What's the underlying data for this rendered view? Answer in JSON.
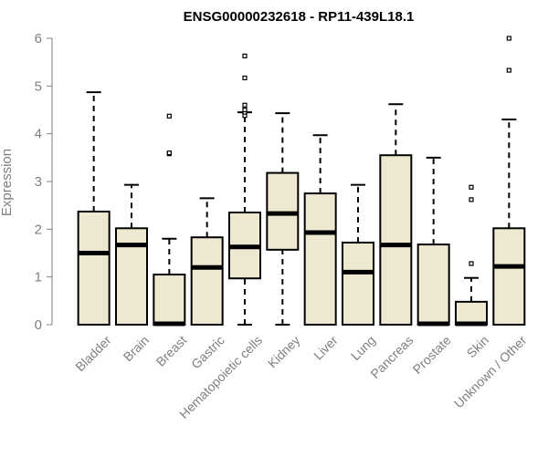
{
  "chart_data": {
    "type": "boxplot",
    "title": "ENSG00000232618 - RP11-439L18.1",
    "xlabel": "",
    "ylabel": "Expression",
    "ylim": [
      0,
      6
    ],
    "yticks": [
      0,
      1,
      2,
      3,
      4,
      5,
      6
    ],
    "grid": false,
    "box_fill": "#efe8d0",
    "box_stroke": "#000000",
    "axis_color": "#7f7f7f",
    "categories": [
      "Bladder",
      "Brain",
      "Breast",
      "Gastric",
      "Hematopoietic cells",
      "Kidney",
      "Liver",
      "Lung",
      "Pancreas",
      "Prostate",
      "Skin",
      "Unknown / Other"
    ],
    "boxes": [
      {
        "label": "Bladder",
        "min": 0,
        "q1": 0,
        "median": 1.5,
        "q3": 2.37,
        "max": 4.87,
        "outliers": []
      },
      {
        "label": "Brain",
        "min": 0,
        "q1": 0,
        "median": 1.67,
        "q3": 2.02,
        "max": 2.93,
        "outliers": []
      },
      {
        "label": "Breast",
        "min": 0,
        "q1": 0,
        "median": 0.02,
        "q3": 1.05,
        "max": 1.8,
        "outliers": [
          3.58,
          3.6,
          4.37
        ]
      },
      {
        "label": "Gastric",
        "min": 0,
        "q1": 0,
        "median": 1.2,
        "q3": 1.83,
        "max": 2.65,
        "outliers": []
      },
      {
        "label": "Hematopoietic cells",
        "min": 0,
        "q1": 0.97,
        "median": 1.63,
        "q3": 2.35,
        "max": 4.45,
        "outliers": [
          4.38,
          4.45,
          4.5,
          4.6,
          5.17,
          5.63
        ]
      },
      {
        "label": "Kidney",
        "min": 0,
        "q1": 1.57,
        "median": 2.33,
        "q3": 3.18,
        "max": 4.43,
        "outliers": []
      },
      {
        "label": "Liver",
        "min": 0,
        "q1": 0,
        "median": 1.93,
        "q3": 2.75,
        "max": 3.97,
        "outliers": []
      },
      {
        "label": "Lung",
        "min": 0,
        "q1": 0,
        "median": 1.1,
        "q3": 1.72,
        "max": 2.93,
        "outliers": []
      },
      {
        "label": "Pancreas",
        "min": 0,
        "q1": 0,
        "median": 1.67,
        "q3": 3.55,
        "max": 4.62,
        "outliers": []
      },
      {
        "label": "Prostate",
        "min": 0,
        "q1": 0,
        "median": 0.02,
        "q3": 1.68,
        "max": 3.5,
        "outliers": []
      },
      {
        "label": "Skin",
        "min": 0,
        "q1": 0,
        "median": 0.02,
        "q3": 0.48,
        "max": 0.98,
        "outliers": [
          1.28,
          2.62,
          2.88
        ]
      },
      {
        "label": "Unknown / Other",
        "min": 0,
        "q1": 0,
        "median": 1.22,
        "q3": 2.02,
        "max": 4.3,
        "outliers": [
          5.33,
          6.0
        ]
      }
    ]
  }
}
